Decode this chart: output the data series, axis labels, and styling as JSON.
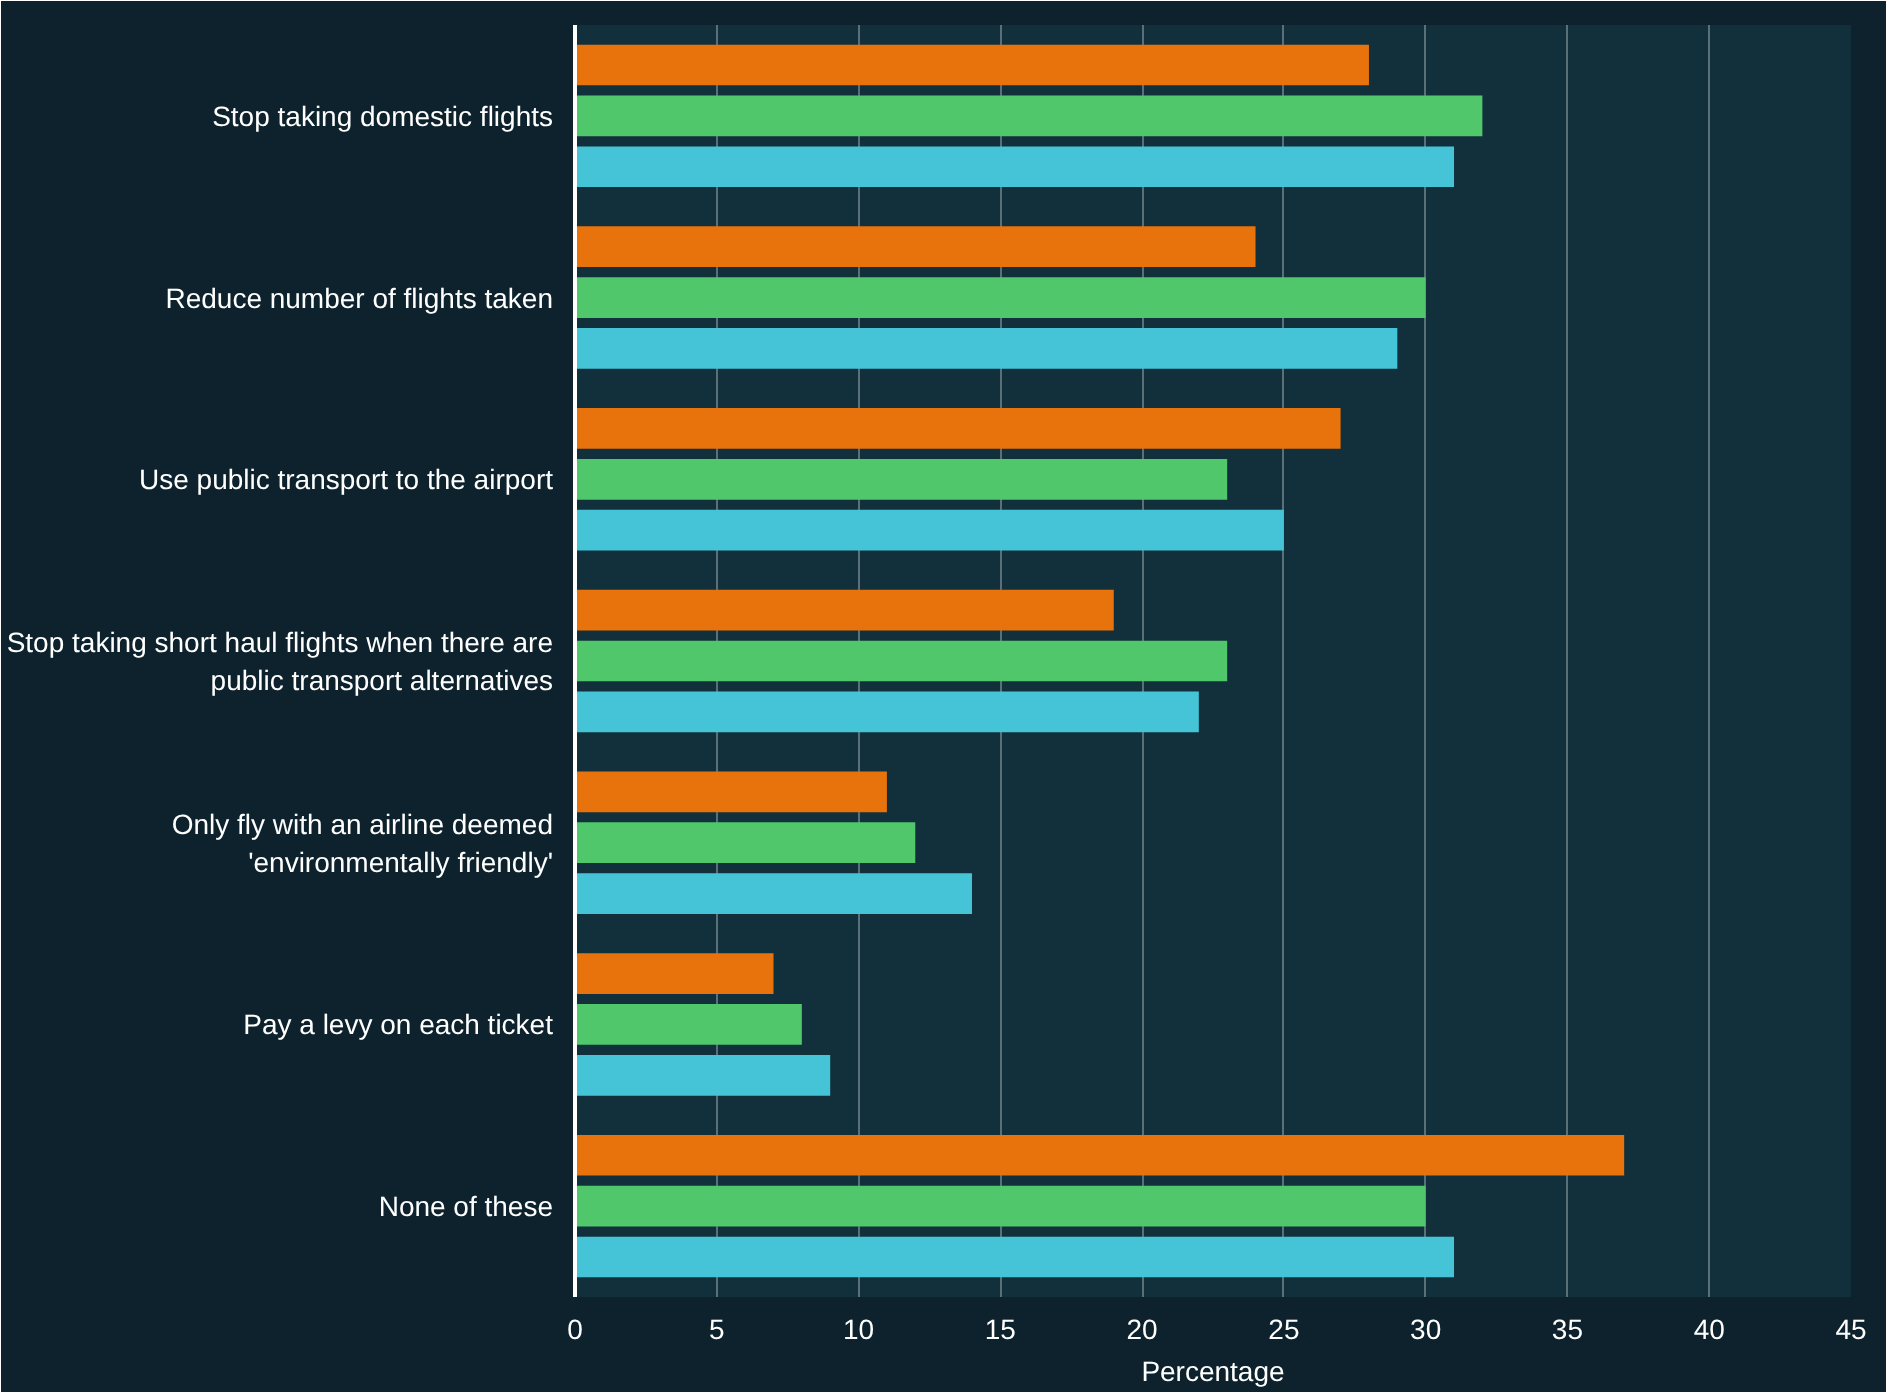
{
  "chart_data": {
    "type": "bar",
    "orientation": "horizontal",
    "xlabel": "Percentage",
    "categories": [
      "Stop taking domestic flights",
      "Reduce number of flights taken",
      "Use public transport to the airport",
      "Stop taking short haul flights when there are public transport alternatives",
      "Only fly with an airline deemed 'environmentally friendly'",
      "Pay a levy on each ticket",
      "None of these"
    ],
    "series": [
      {
        "color": "#e8720c",
        "values": [
          28,
          24,
          27,
          19,
          11,
          7,
          37
        ]
      },
      {
        "color": "#4fc76a",
        "values": [
          32,
          30,
          23,
          23,
          12,
          8,
          30
        ]
      },
      {
        "color": "#45c4d8",
        "values": [
          31,
          29,
          25,
          22,
          14,
          9,
          31
        ]
      }
    ],
    "xlim": [
      0,
      45
    ],
    "xticks": [
      0,
      5,
      10,
      15,
      20,
      25,
      30,
      35,
      40,
      45
    ],
    "grid": "x"
  }
}
